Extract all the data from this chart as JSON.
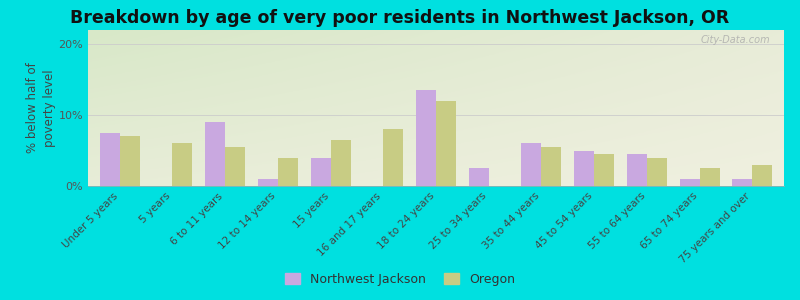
{
  "title": "Breakdown by age of very poor residents in Northwest Jackson, OR",
  "ylabel": "% below half of\npoverty level",
  "categories": [
    "Under 5 years",
    "5 years",
    "6 to 11 years",
    "12 to 14 years",
    "15 years",
    "16 and 17 years",
    "18 to 24 years",
    "25 to 34 years",
    "35 to 44 years",
    "45 to 54 years",
    "55 to 64 years",
    "65 to 74 years",
    "75 years and over"
  ],
  "nw_jackson": [
    7.5,
    0.0,
    9.0,
    1.0,
    4.0,
    0.0,
    13.5,
    2.5,
    6.0,
    5.0,
    4.5,
    1.0,
    1.0
  ],
  "oregon": [
    7.0,
    6.0,
    5.5,
    4.0,
    6.5,
    8.0,
    12.0,
    0.0,
    5.5,
    4.5,
    4.0,
    2.5,
    3.0
  ],
  "nw_color": "#c9a8e0",
  "or_color": "#c8cc84",
  "bg_outer": "#00e0e0",
  "bg_plot_topleft": "#d8e8c8",
  "bg_plot_bottomright": "#f0f0e0",
  "ylim_max": 22,
  "yticks": [
    0,
    10,
    20
  ],
  "ytick_labels": [
    "0%",
    "10%",
    "20%"
  ],
  "watermark": "City-Data.com",
  "bar_width": 0.38,
  "legend_nw": "Northwest Jackson",
  "legend_or": "Oregon",
  "title_fontsize": 12.5,
  "axis_fontsize": 8.5,
  "tick_fontsize": 8.0,
  "grid_color": "#cccccc"
}
